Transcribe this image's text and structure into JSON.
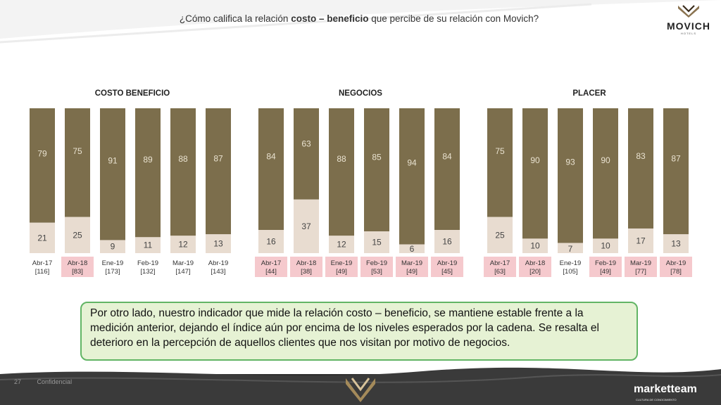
{
  "header": {
    "question_pre": "¿Cómo califica la relación ",
    "question_bold": "costo – beneficio",
    "question_post": " que percibe de su relación con Movich?"
  },
  "logo": {
    "text": "MOVICH",
    "sub": "HOTELS"
  },
  "colors": {
    "olive": "#7c6e4c",
    "beige": "#e8dcd0",
    "highlight": "#f5c9cd",
    "callout_border": "#62b565",
    "callout_bg": "#e6f2d4"
  },
  "chart_data": [
    {
      "type": "bar",
      "stacked": true,
      "title": "COSTO BENEFICIO",
      "categories": [
        "Abr-17",
        "Abr-18",
        "Ene-19",
        "Feb-19",
        "Mar-19",
        "Abr-19"
      ],
      "bases": [
        "[116]",
        "[83]",
        "[173]",
        "[132]",
        "[147]",
        "[143]"
      ],
      "highlighted": [
        false,
        true,
        false,
        false,
        false,
        false
      ],
      "series": [
        {
          "values": [
            21,
            25,
            9,
            11,
            12,
            13
          ]
        },
        {
          "values": [
            79,
            75,
            91,
            89,
            88,
            87
          ]
        }
      ],
      "ylim": [
        0,
        100
      ]
    },
    {
      "type": "bar",
      "stacked": true,
      "title": "NEGOCIOS",
      "categories": [
        "Abr-17",
        "Abr-18",
        "Ene-19",
        "Feb-19",
        "Mar-19",
        "Abr-19"
      ],
      "bases": [
        "[44]",
        "[38]",
        "[49]",
        "[53]",
        "[49]",
        "[45]"
      ],
      "highlighted": [
        true,
        true,
        true,
        true,
        true,
        true
      ],
      "series": [
        {
          "values": [
            16,
            37,
            12,
            15,
            6,
            16
          ]
        },
        {
          "values": [
            84,
            63,
            88,
            85,
            94,
            84
          ]
        }
      ],
      "ylim": [
        0,
        100
      ]
    },
    {
      "type": "bar",
      "stacked": true,
      "title": "PLACER",
      "categories": [
        "Abr-17",
        "Abr-18",
        "Ene-19",
        "Feb-19",
        "Mar-19",
        "Abr-19"
      ],
      "bases": [
        "[63]",
        "[20]",
        "[105]",
        "[49]",
        "[77]",
        "[78]"
      ],
      "highlighted": [
        true,
        true,
        false,
        true,
        true,
        true
      ],
      "series": [
        {
          "values": [
            25,
            10,
            7,
            10,
            17,
            13
          ]
        },
        {
          "values": [
            75,
            90,
            93,
            90,
            83,
            87
          ]
        }
      ],
      "ylim": [
        0,
        100
      ]
    }
  ],
  "callout": {
    "text": "Por otro lado, nuestro indicador que mide la relación costo – beneficio, se mantiene estable frente a la medición anterior, dejando el índice aún por encima de los niveles esperados por la cadena. Se resalta el deterioro en la percepción de aquellos clientes que nos visitan por motivo de negocios."
  },
  "footer": {
    "page": "27",
    "confidential": "Confidencial",
    "marketteam": "marketteam",
    "marketteam_sub": "CULTURA DE CONOCIMIENTO"
  }
}
